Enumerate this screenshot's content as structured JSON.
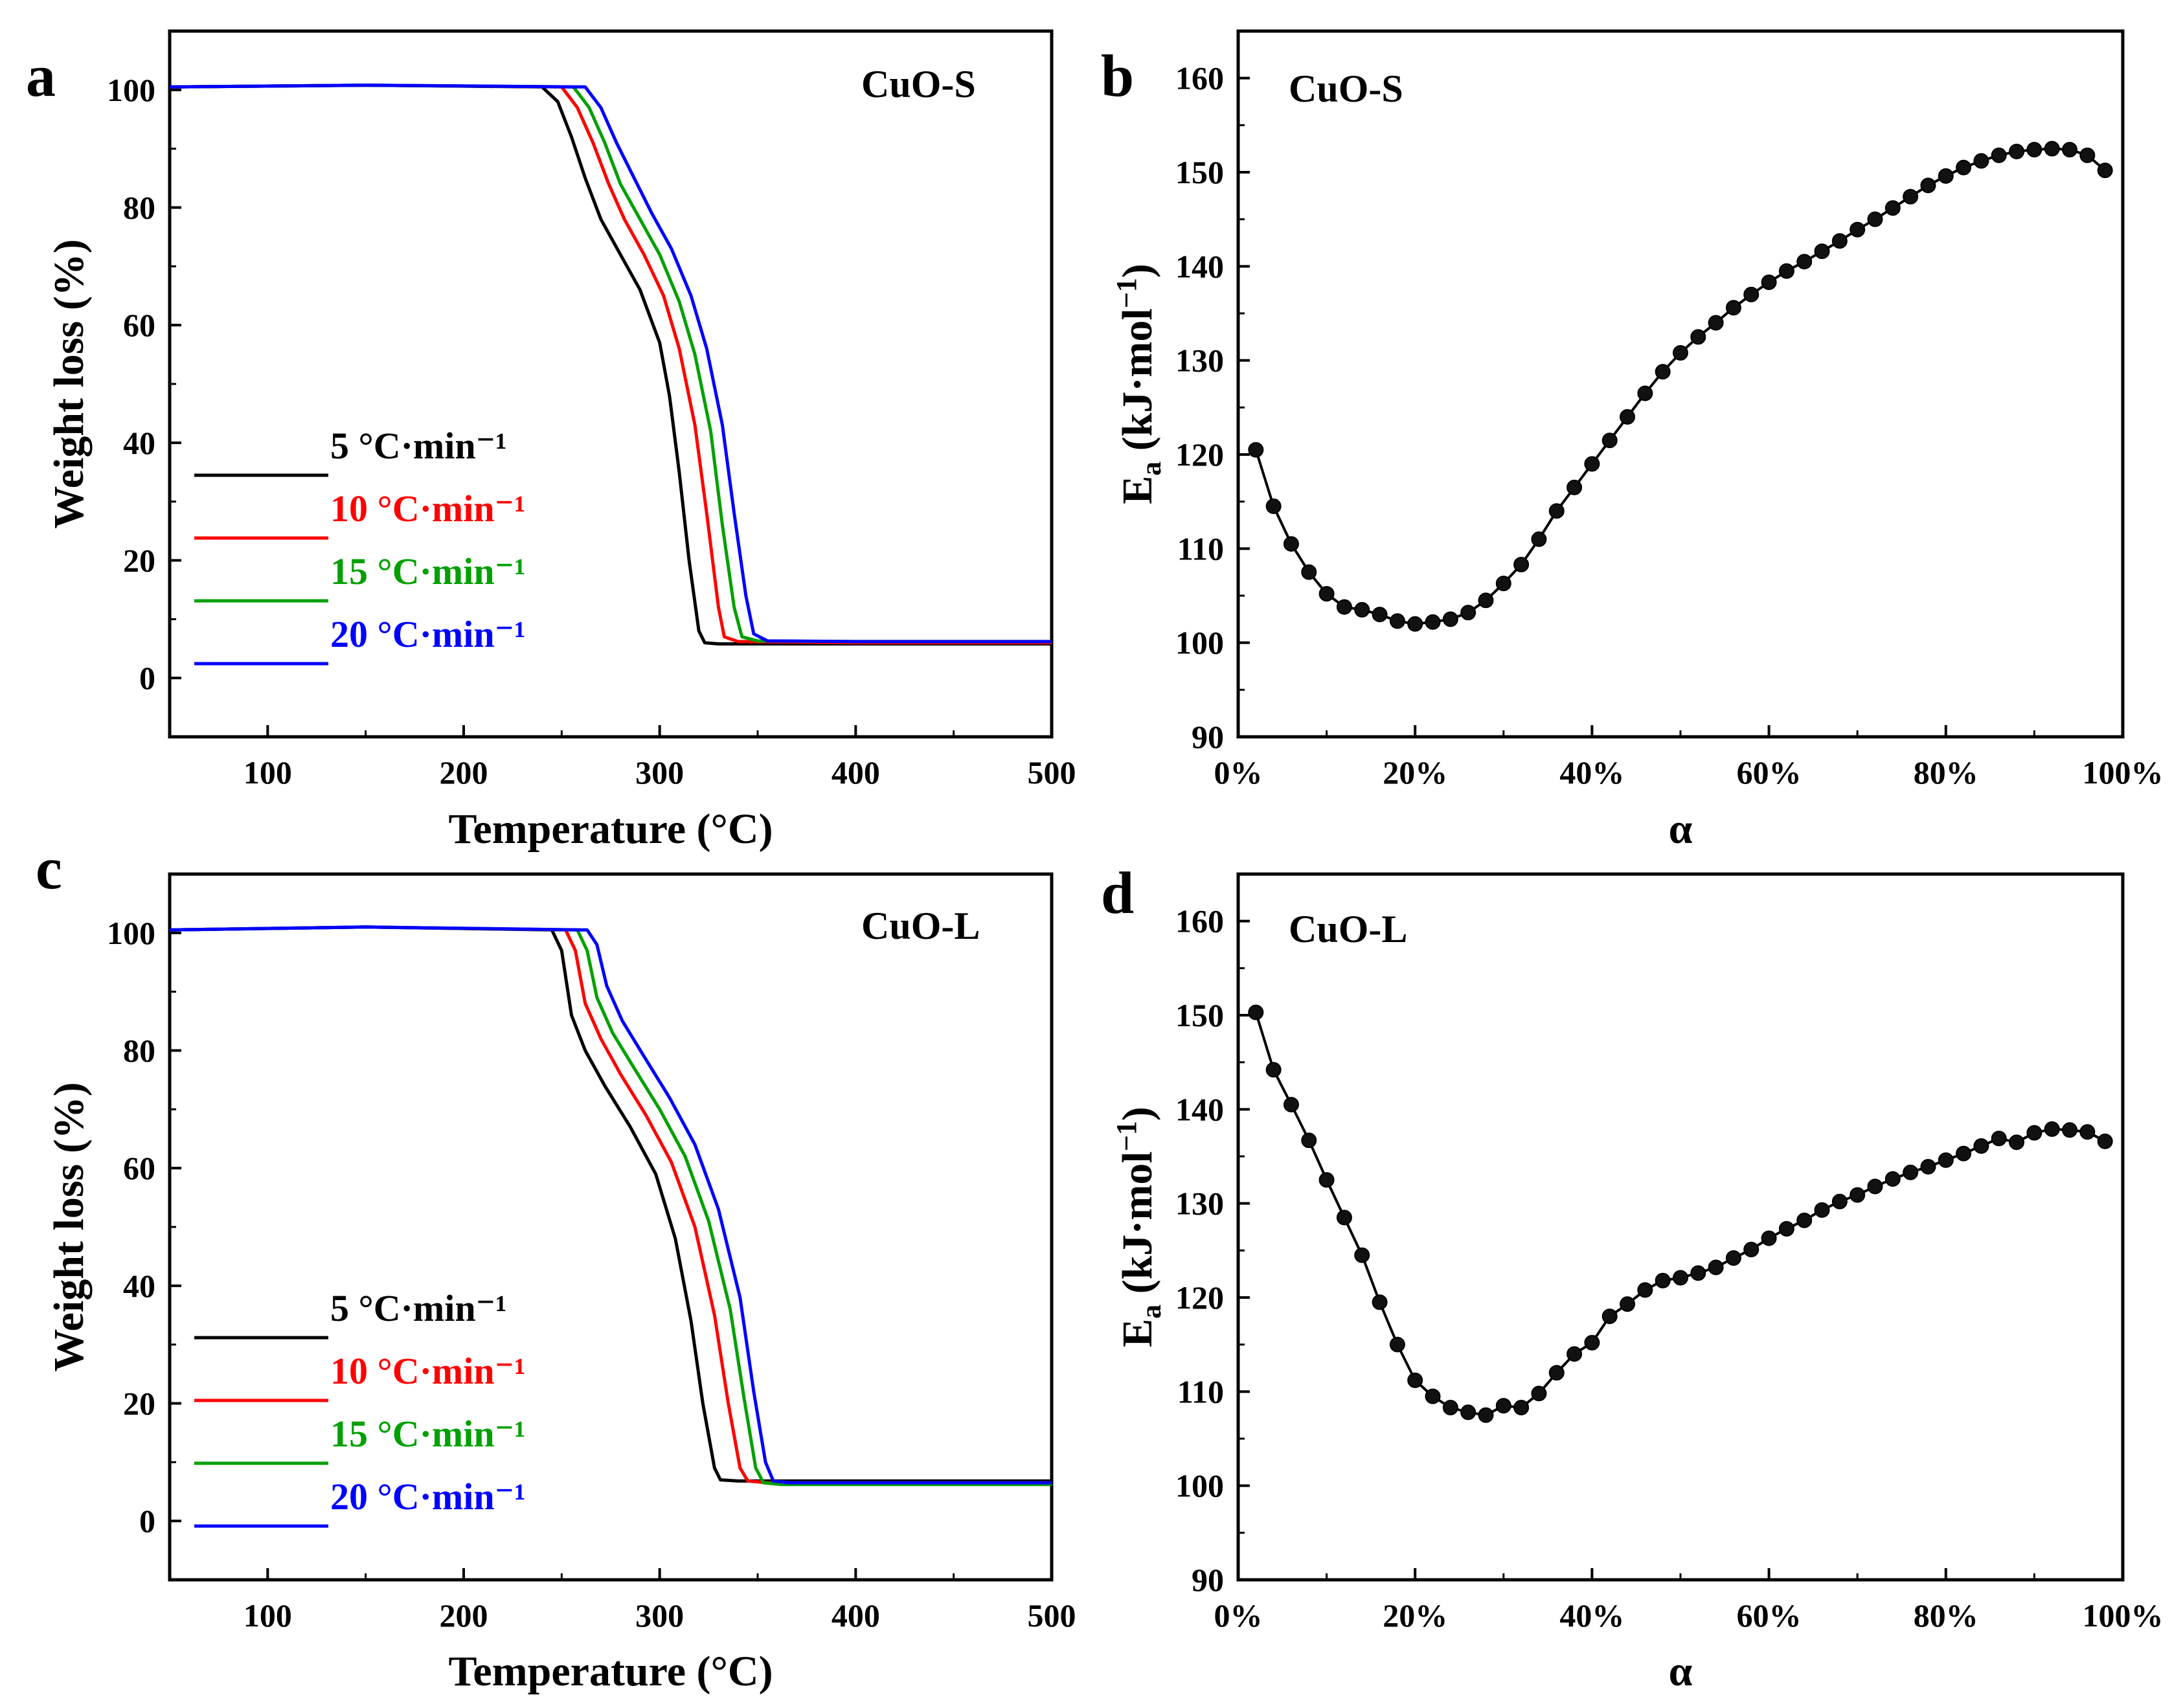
{
  "figure": {
    "panels": [
      {
        "id": "a",
        "letter": "a",
        "label": "CuO-S"
      },
      {
        "id": "b",
        "letter": "b",
        "label": "CuO-S"
      },
      {
        "id": "c",
        "letter": "c",
        "label": "CuO-L"
      },
      {
        "id": "d",
        "letter": "d",
        "label": "CuO-L"
      }
    ]
  },
  "chart_data": [
    {
      "panel": "a",
      "type": "line",
      "title": "CuO-S",
      "xlabel": "Temperature (°C)",
      "ylabel": "Weight loss (%)",
      "xlim": [
        50,
        500
      ],
      "ylim": [
        -10,
        110
      ],
      "xticks": [
        100,
        200,
        300,
        400,
        500
      ],
      "yticks": [
        0,
        20,
        40,
        60,
        80,
        100
      ],
      "grid": false,
      "legend_position": "center-left",
      "series": [
        {
          "name": "5 °C·min⁻¹",
          "color": "#000000",
          "x": [
            50,
            150,
            240,
            248,
            255,
            262,
            270,
            280,
            290,
            300,
            305,
            310,
            315,
            320,
            323,
            330,
            400,
            500
          ],
          "y": [
            100.5,
            100.8,
            100.5,
            98,
            92,
            85,
            78,
            72,
            66,
            57,
            48,
            35,
            20,
            8,
            6,
            5.8,
            5.8,
            5.8
          ]
        },
        {
          "name": "10 °C·min⁻¹",
          "color": "#ff0000",
          "x": [
            50,
            150,
            250,
            258,
            266,
            274,
            282,
            292,
            302,
            310,
            318,
            324,
            330,
            333,
            340,
            400,
            500
          ],
          "y": [
            100.5,
            100.8,
            100.5,
            97,
            91,
            84,
            78,
            72,
            65,
            56,
            43,
            28,
            12,
            7,
            6.2,
            6,
            6
          ]
        },
        {
          "name": "15 °C·min⁻¹",
          "color": "#00a000",
          "x": [
            50,
            150,
            256,
            264,
            272,
            280,
            290,
            300,
            310,
            318,
            326,
            332,
            338,
            342,
            350,
            400,
            500
          ],
          "y": [
            100.5,
            100.8,
            100.5,
            97,
            91,
            84,
            78,
            72,
            64,
            55,
            42,
            26,
            12,
            7,
            6.3,
            6.2,
            6.2
          ]
        },
        {
          "name": "20 °C·min⁻¹",
          "color": "#0000ff",
          "x": [
            50,
            150,
            262,
            270,
            278,
            287,
            296,
            306,
            316,
            324,
            332,
            338,
            344,
            348,
            355,
            400,
            500
          ],
          "y": [
            100.5,
            100.8,
            100.5,
            97,
            91,
            85,
            79,
            73,
            65,
            56,
            43,
            28,
            14,
            7.5,
            6.3,
            6.2,
            6.2
          ]
        }
      ],
      "legend": [
        "5 °C·min⁻¹",
        "10 °C·min⁻¹",
        "15 °C·min⁻¹",
        "20 °C·min⁻¹"
      ]
    },
    {
      "panel": "b",
      "type": "line",
      "title": "CuO-S",
      "xlabel": "α",
      "ylabel": "Ea (kJ·mol⁻¹)",
      "xlim": [
        0,
        100
      ],
      "ylim": [
        90,
        165
      ],
      "xticks": [
        "0%",
        "20%",
        "40%",
        "60%",
        "80%",
        "100%"
      ],
      "yticks": [
        90,
        100,
        110,
        120,
        130,
        140,
        150,
        160
      ],
      "grid": false,
      "marker": "circle",
      "x": [
        2,
        4,
        6,
        8,
        10,
        12,
        14,
        16,
        18,
        20,
        22,
        24,
        26,
        28,
        30,
        32,
        34,
        36,
        38,
        40,
        42,
        44,
        46,
        48,
        50,
        52,
        54,
        56,
        58,
        60,
        62,
        64,
        66,
        68,
        70,
        72,
        74,
        76,
        78,
        80,
        82,
        84,
        86,
        88,
        90,
        92,
        94,
        96,
        98
      ],
      "y": [
        120.5,
        114.5,
        110.5,
        107.5,
        105.2,
        103.8,
        103.5,
        103,
        102.3,
        102,
        102.2,
        102.5,
        103.2,
        104.5,
        106.3,
        108.3,
        111,
        114,
        116.5,
        119,
        121.5,
        124,
        126.5,
        128.8,
        130.8,
        132.5,
        134,
        135.6,
        137,
        138.3,
        139.5,
        140.5,
        141.6,
        142.7,
        143.9,
        145,
        146.2,
        147.4,
        148.6,
        149.6,
        150.5,
        151.2,
        151.8,
        152.2,
        152.4,
        152.5,
        152.4,
        151.8,
        150.2
      ]
    },
    {
      "panel": "c",
      "type": "line",
      "title": "CuO-L",
      "xlabel": "Temperature (°C)",
      "ylabel": "Weight loss (%)",
      "xlim": [
        50,
        500
      ],
      "ylim": [
        -10,
        110
      ],
      "xticks": [
        100,
        200,
        300,
        400,
        500
      ],
      "yticks": [
        0,
        20,
        40,
        60,
        80,
        100
      ],
      "grid": false,
      "legend_position": "center-left",
      "series": [
        {
          "name": "5 °C·min⁻¹",
          "color": "#000000",
          "x": [
            50,
            150,
            245,
            250,
            255,
            262,
            272,
            285,
            298,
            308,
            316,
            322,
            328,
            331,
            340,
            400,
            500
          ],
          "y": [
            100.5,
            101,
            100.5,
            97,
            86,
            80,
            74,
            67,
            59,
            48,
            34,
            20,
            9,
            7,
            6.8,
            6.8,
            6.8
          ]
        },
        {
          "name": "10 °C·min⁻¹",
          "color": "#ff0000",
          "x": [
            50,
            150,
            252,
            257,
            262,
            270,
            280,
            293,
            306,
            318,
            328,
            335,
            341,
            345,
            355,
            400,
            500
          ],
          "y": [
            100.5,
            101,
            100.5,
            97,
            88,
            82,
            76,
            69,
            61,
            50,
            35,
            20,
            9,
            6.8,
            6.5,
            6.5,
            6.5
          ]
        },
        {
          "name": "15 °C·min⁻¹",
          "color": "#00a000",
          "x": [
            50,
            150,
            258,
            263,
            268,
            276,
            287,
            300,
            313,
            325,
            336,
            343,
            349,
            353,
            362,
            400,
            500
          ],
          "y": [
            100.5,
            101,
            100.5,
            97,
            89,
            83,
            77,
            70,
            62,
            51,
            36,
            21,
            9,
            6.5,
            6.2,
            6.2,
            6.2
          ]
        },
        {
          "name": "20 °C·min⁻¹",
          "color": "#0000ff",
          "x": [
            50,
            150,
            263,
            268,
            273,
            281,
            292,
            305,
            318,
            330,
            341,
            348,
            354,
            358,
            366,
            400,
            500
          ],
          "y": [
            100.5,
            101,
            100.5,
            98,
            91,
            85,
            79,
            72,
            64,
            53,
            38,
            22,
            10,
            6.8,
            6.5,
            6.5,
            6.5
          ]
        }
      ],
      "legend": [
        "5 °C·min⁻¹",
        "10 °C·min⁻¹",
        "15 °C·min⁻¹",
        "20 °C·min⁻¹"
      ]
    },
    {
      "panel": "d",
      "type": "line",
      "title": "CuO-L",
      "xlabel": "α",
      "ylabel": "Ea (kJ·mol⁻¹)",
      "xlim": [
        0,
        100
      ],
      "ylim": [
        90,
        165
      ],
      "xticks": [
        "0%",
        "20%",
        "40%",
        "60%",
        "80%",
        "100%"
      ],
      "yticks": [
        90,
        100,
        110,
        120,
        130,
        140,
        150,
        160
      ],
      "grid": false,
      "marker": "circle",
      "x": [
        2,
        4,
        6,
        8,
        10,
        12,
        14,
        16,
        18,
        20,
        22,
        24,
        26,
        28,
        30,
        32,
        34,
        36,
        38,
        40,
        42,
        44,
        46,
        48,
        50,
        52,
        54,
        56,
        58,
        60,
        62,
        64,
        66,
        68,
        70,
        72,
        74,
        76,
        78,
        80,
        82,
        84,
        86,
        88,
        90,
        92,
        94,
        96,
        98
      ],
      "y": [
        150.3,
        144.2,
        140.5,
        136.7,
        132.5,
        128.5,
        124.5,
        119.5,
        115,
        111.2,
        109.5,
        108.3,
        107.8,
        107.5,
        108.5,
        108.3,
        109.8,
        112,
        114,
        115.2,
        118,
        119.3,
        120.8,
        121.8,
        122.1,
        122.6,
        123.2,
        124.2,
        125.1,
        126.3,
        127.3,
        128.2,
        129.3,
        130.2,
        130.9,
        131.8,
        132.6,
        133.3,
        133.9,
        134.6,
        135.3,
        136.1,
        136.9,
        136.5,
        137.5,
        137.9,
        137.8,
        137.6,
        136.6
      ]
    }
  ]
}
